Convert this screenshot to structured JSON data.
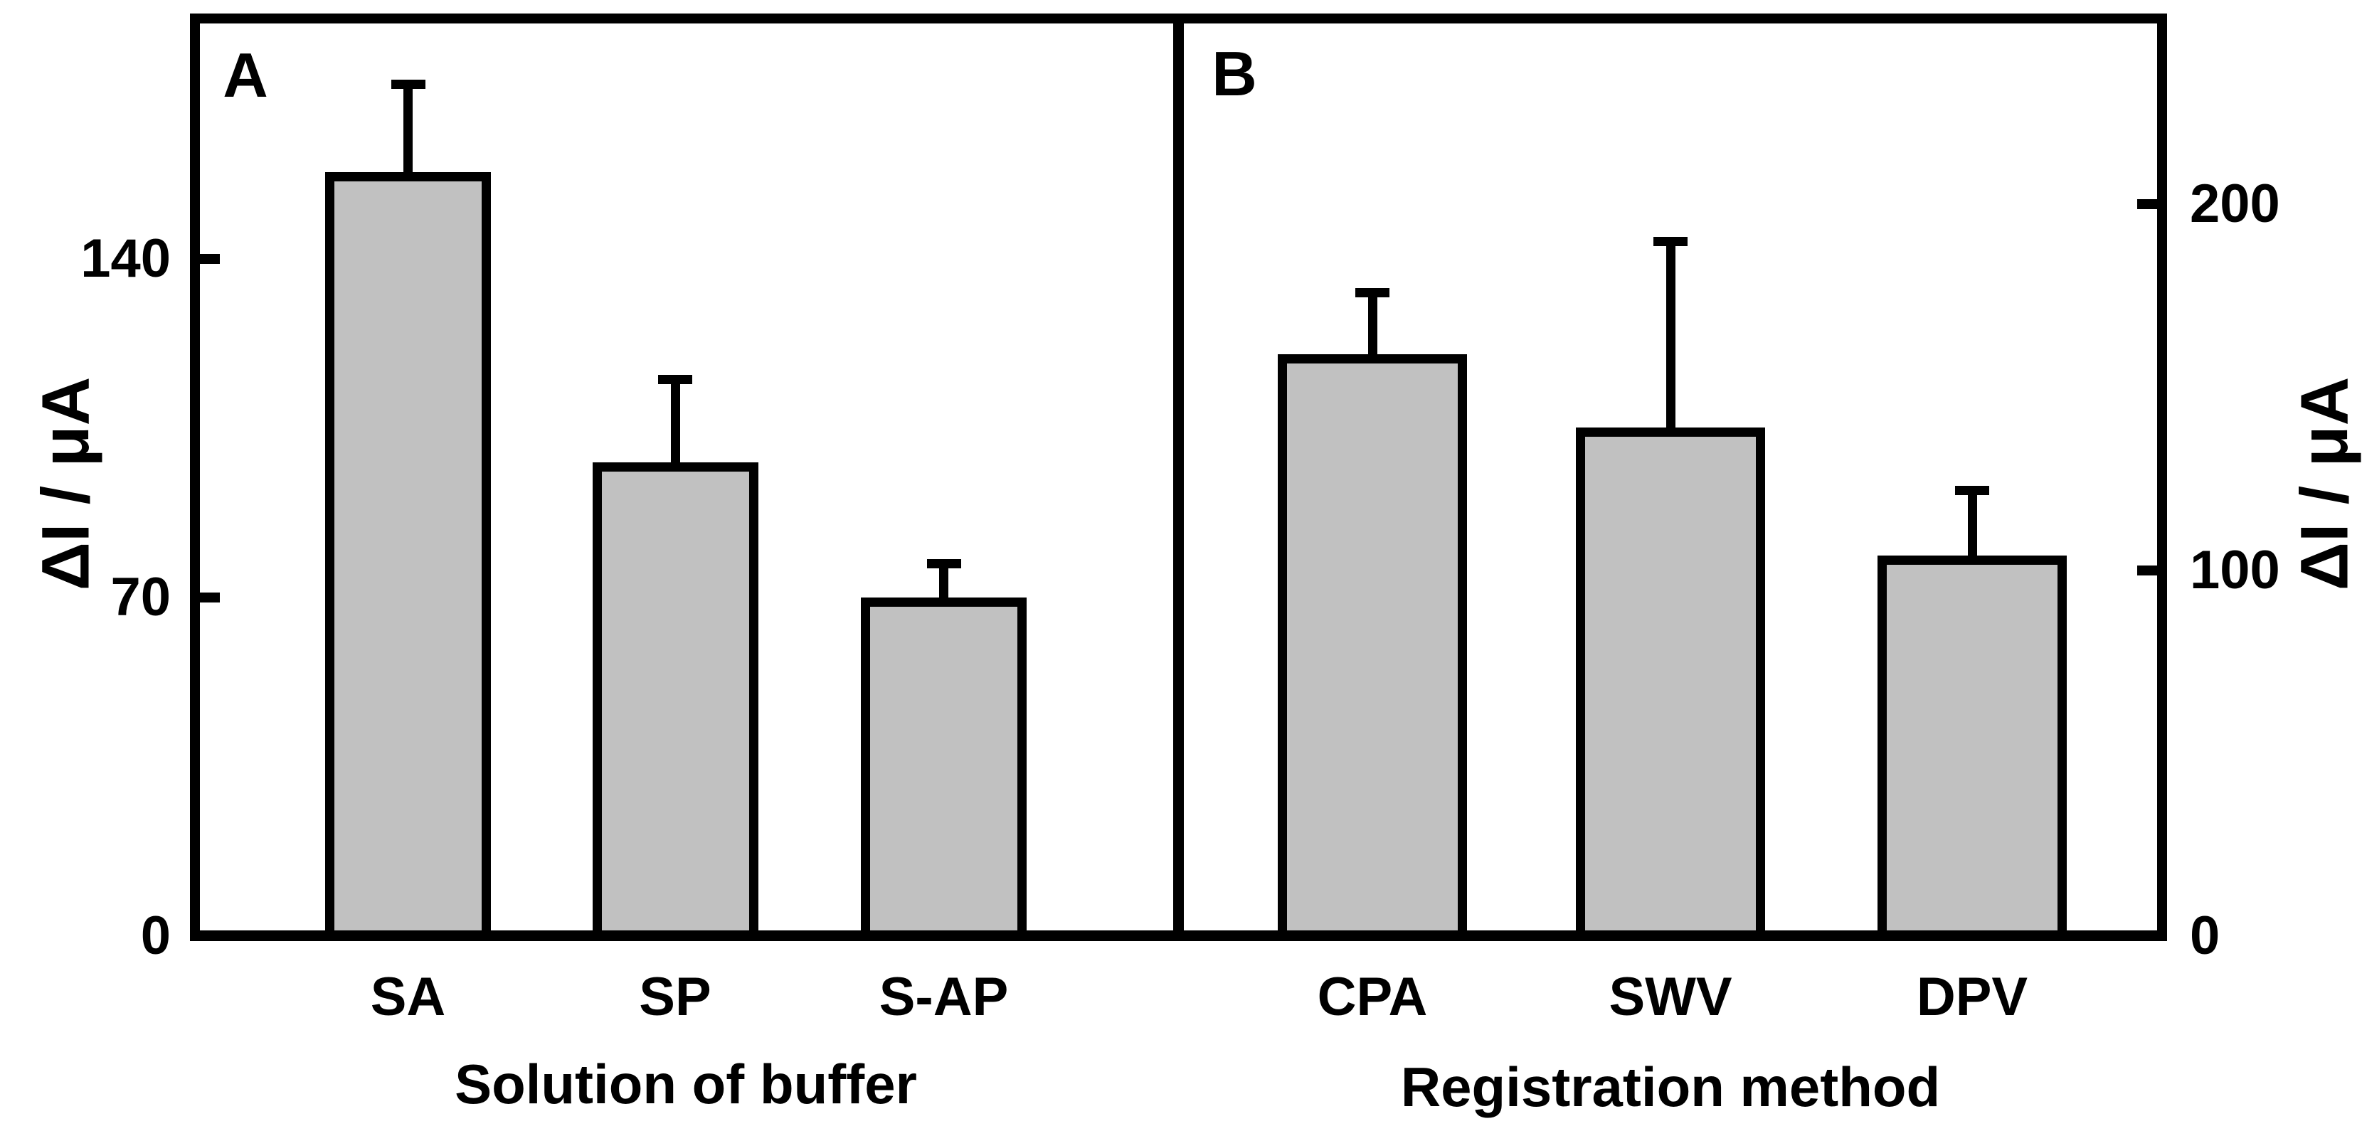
{
  "figure": {
    "background": "#ffffff",
    "bar_fill": "#c1c1c1",
    "line_color": "#000000"
  },
  "chart_data": [
    {
      "type": "bar",
      "panel_letter": "A",
      "categories": [
        "SA",
        "SP",
        "S-AP"
      ],
      "values": [
        158,
        98,
        70
      ],
      "errors_plus": [
        19,
        18,
        8
      ],
      "xlabel": "Solution of buffer",
      "ylabel": "ΔI / μA",
      "ytick_labels": [
        "0",
        "70",
        "140"
      ],
      "ytick_values": [
        0,
        70,
        140
      ],
      "ylim": [
        0,
        190
      ],
      "axis_side": "left",
      "grid": false,
      "legend": "none"
    },
    {
      "type": "bar",
      "panel_letter": "B",
      "categories": [
        "CPA",
        "SWV",
        "DPV"
      ],
      "values": [
        159,
        139,
        104
      ],
      "errors_plus": [
        18,
        52,
        19
      ],
      "xlabel": "Registration method",
      "ylabel": "ΔI / μA",
      "ytick_labels": [
        "0",
        "100",
        "200"
      ],
      "ytick_values": [
        0,
        100,
        200
      ],
      "ylim": [
        0,
        250
      ],
      "axis_side": "right",
      "grid": false,
      "legend": "none"
    }
  ]
}
